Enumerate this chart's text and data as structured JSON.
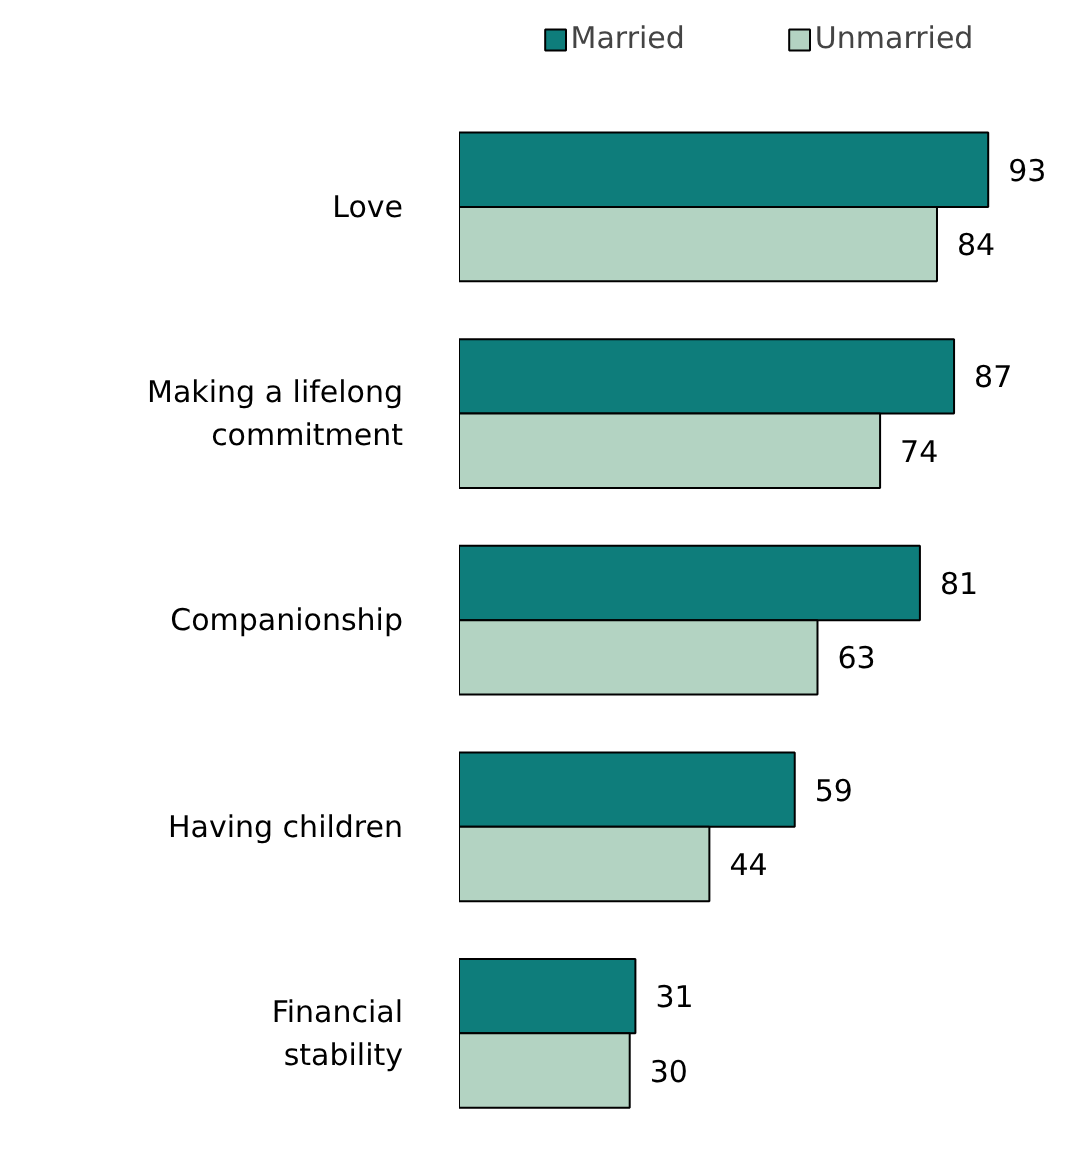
{
  "chart_data": {
    "type": "bar",
    "orientation": "horizontal",
    "categories": [
      "Love",
      "Making a lifelong commitment",
      "Companionship",
      "Having children",
      "Financial stability"
    ],
    "series": [
      {
        "name": "Married",
        "color": "#0e7d7b",
        "values": [
          93,
          87,
          81,
          59,
          31
        ]
      },
      {
        "name": "Unmarried",
        "color": "#b3d3c2",
        "values": [
          84,
          74,
          63,
          44,
          30
        ]
      }
    ],
    "data_labels": true,
    "legend": "top",
    "grid": false
  }
}
